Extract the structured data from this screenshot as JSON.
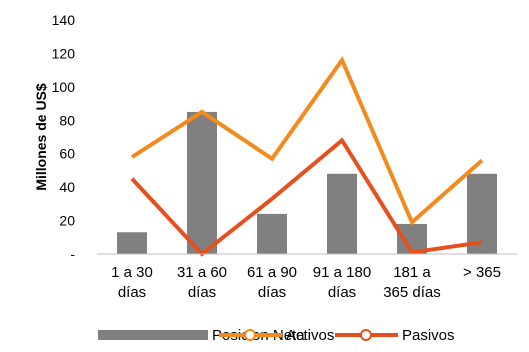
{
  "chart_data": {
    "type": "bar",
    "categories": [
      [
        "1 a 30",
        "días"
      ],
      [
        "31 a 60",
        "días"
      ],
      [
        "61 a 90",
        "días"
      ],
      [
        "91 a 180",
        "días"
      ],
      [
        "181 a",
        "365 días"
      ],
      [
        "> 365",
        ""
      ]
    ],
    "ylabel": "Millones de US$",
    "ylim": [
      0,
      140
    ],
    "yticks": [
      {
        "value": 0,
        "label": "-"
      },
      {
        "value": 20,
        "label": "20"
      },
      {
        "value": 40,
        "label": "40"
      },
      {
        "value": 60,
        "label": "60"
      },
      {
        "value": 80,
        "label": "80"
      },
      {
        "value": 100,
        "label": "100"
      },
      {
        "value": 120,
        "label": "120"
      },
      {
        "value": 140,
        "label": "140"
      }
    ],
    "grid": false,
    "legend_position": "bottom",
    "series": [
      {
        "name": "Posicion Neta",
        "type": "bar",
        "color": "#808080",
        "values": [
          13,
          85,
          24,
          48,
          18,
          48
        ]
      },
      {
        "name": "Activos",
        "type": "line",
        "color": "#F28A1D",
        "values": [
          58,
          85,
          57,
          116,
          19,
          56
        ]
      },
      {
        "name": "Pasivos",
        "type": "line",
        "color": "#E6501E",
        "values": [
          45,
          0,
          33,
          68,
          1,
          7
        ]
      }
    ]
  }
}
